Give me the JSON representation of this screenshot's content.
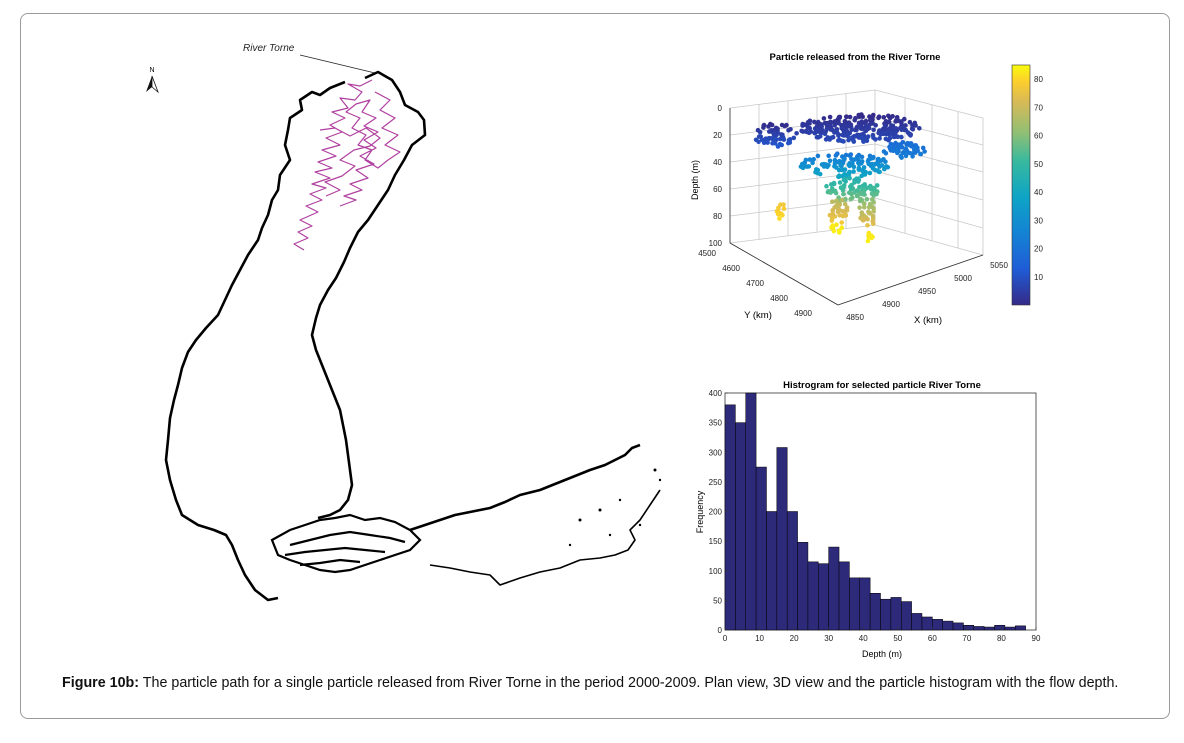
{
  "map": {
    "river_label": "River Torne",
    "north_label": "N",
    "path_color": "#b0409f",
    "coast_color": "#000000"
  },
  "plot3d": {
    "title": "Particle released from the River Torne",
    "zlabel": "Depth (m)",
    "ylabel": "Y (km)",
    "xlabel": "X (km)",
    "z_ticks": [
      "0",
      "20",
      "40",
      "60",
      "80",
      "100"
    ],
    "y_ticks": [
      "4500",
      "4600",
      "4700",
      "4800",
      "4900"
    ],
    "x_ticks": [
      "4850",
      "4900",
      "4950",
      "5000",
      "5050"
    ],
    "colorbar_ticks": [
      "10",
      "20",
      "30",
      "40",
      "50",
      "60",
      "70",
      "80"
    ],
    "colormap": "parula",
    "grid": true
  },
  "chart_data": {
    "type": "bar",
    "title": "Histrogram for selected particle River Torne",
    "xlabel": "Depth (m)",
    "ylabel": "Frequency",
    "bin_width": 3,
    "bin_starts": [
      0,
      3,
      6,
      9,
      12,
      15,
      18,
      21,
      24,
      27,
      30,
      33,
      36,
      39,
      42,
      45,
      48,
      51,
      54,
      57,
      60,
      63,
      66,
      69,
      72,
      75,
      78,
      81,
      84
    ],
    "values": [
      380,
      350,
      400,
      275,
      200,
      308,
      200,
      148,
      115,
      112,
      140,
      115,
      88,
      88,
      62,
      52,
      55,
      48,
      28,
      22,
      18,
      15,
      12,
      8,
      6,
      5,
      8,
      5,
      7
    ],
    "xlim": [
      0,
      90
    ],
    "ylim": [
      0,
      400
    ],
    "x_ticks": [
      "0",
      "10",
      "20",
      "30",
      "40",
      "50",
      "60",
      "70",
      "80",
      "90"
    ],
    "y_ticks": [
      "0",
      "50",
      "100",
      "150",
      "200",
      "250",
      "300",
      "350",
      "400"
    ],
    "bar_color": "#2e2a7a"
  },
  "caption": {
    "label": "Figure 10b:",
    "text": " The particle path for a single particle released from River Torne in the period 2000-2009. Plan view, 3D view and the particle histogram with the flow depth."
  }
}
